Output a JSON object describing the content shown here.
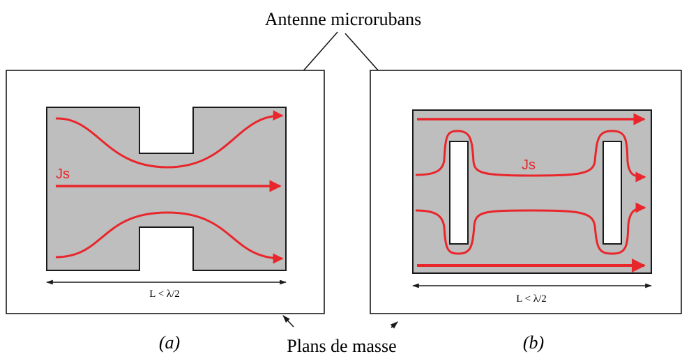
{
  "title": "Antenne microrubans",
  "bottom_label": "Plans de masse",
  "panel_a": {
    "caption": "(a)",
    "current_label": "Js",
    "dimension_label": "L < λ/2"
  },
  "panel_b": {
    "caption": "(b)",
    "current_label": "Js",
    "dimension_label": "L < λ/2"
  },
  "colors": {
    "patch": "#bebebe",
    "current": "#e8262b",
    "outline": "#1a1a1a",
    "slot": "#ffffff"
  }
}
